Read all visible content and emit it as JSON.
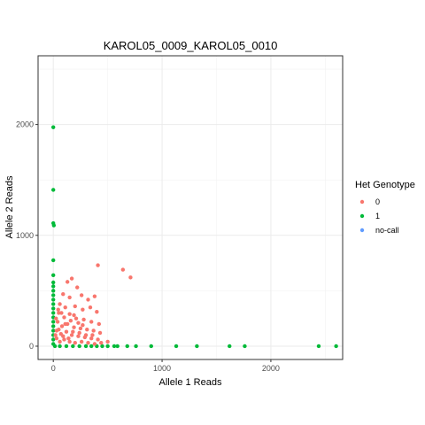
{
  "chart_data": {
    "type": "scatter",
    "title": "KAROL05_0009_KAROL05_0010",
    "xlabel": "Allele 1 Reads",
    "ylabel": "Allele 2 Reads",
    "xlim": [
      -140,
      2660
    ],
    "ylim": [
      -120,
      2620
    ],
    "xticks": [
      0,
      1000,
      2000
    ],
    "yticks": [
      0,
      1000,
      2000
    ],
    "xminor": [
      500,
      1500,
      2500
    ],
    "yminor": [
      500,
      1500,
      2500
    ],
    "grid": true,
    "legend": {
      "title": "Het Genotype",
      "position": "right",
      "entries": [
        {
          "label": "0",
          "color": "#F8766D"
        },
        {
          "label": "1",
          "color": "#00BA38"
        },
        {
          "label": "no-call",
          "color": "#619CFF"
        }
      ]
    },
    "series": [
      {
        "name": "1",
        "color": "#00BA38",
        "points": [
          [
            0,
            1975
          ],
          [
            0,
            1410
          ],
          [
            0,
            1110
          ],
          [
            5,
            1090
          ],
          [
            0,
            775
          ],
          [
            0,
            640
          ],
          [
            0,
            575
          ],
          [
            0,
            540
          ],
          [
            0,
            500
          ],
          [
            0,
            460
          ],
          [
            0,
            420
          ],
          [
            0,
            380
          ],
          [
            0,
            340
          ],
          [
            0,
            300
          ],
          [
            0,
            260
          ],
          [
            0,
            220
          ],
          [
            0,
            180
          ],
          [
            0,
            140
          ],
          [
            0,
            100
          ],
          [
            0,
            60
          ],
          [
            0,
            20
          ],
          [
            15,
            0
          ],
          [
            60,
            0
          ],
          [
            120,
            0
          ],
          [
            180,
            0
          ],
          [
            240,
            0
          ],
          [
            300,
            0
          ],
          [
            350,
            0
          ],
          [
            400,
            0
          ],
          [
            450,
            0
          ],
          [
            500,
            0
          ],
          [
            560,
            0
          ],
          [
            590,
            0
          ],
          [
            680,
            0
          ],
          [
            760,
            0
          ],
          [
            900,
            0
          ],
          [
            1130,
            0
          ],
          [
            1320,
            0
          ],
          [
            1620,
            0
          ],
          [
            1760,
            0
          ],
          [
            2440,
            0
          ],
          [
            2600,
            0
          ]
        ]
      },
      {
        "name": "0",
        "color": "#F8766D",
        "points": [
          [
            410,
            730
          ],
          [
            640,
            690
          ],
          [
            710,
            620
          ],
          [
            130,
            580
          ],
          [
            170,
            610
          ],
          [
            220,
            530
          ],
          [
            90,
            470
          ],
          [
            150,
            440
          ],
          [
            260,
            460
          ],
          [
            320,
            420
          ],
          [
            380,
            450
          ],
          [
            60,
            380
          ],
          [
            110,
            350
          ],
          [
            200,
            360
          ],
          [
            270,
            330
          ],
          [
            340,
            350
          ],
          [
            400,
            310
          ],
          [
            50,
            300
          ],
          [
            100,
            260
          ],
          [
            150,
            290
          ],
          [
            210,
            250
          ],
          [
            280,
            240
          ],
          [
            350,
            220
          ],
          [
            420,
            200
          ],
          [
            40,
            220
          ],
          [
            80,
            180
          ],
          [
            130,
            200
          ],
          [
            190,
            170
          ],
          [
            250,
            160
          ],
          [
            310,
            150
          ],
          [
            370,
            140
          ],
          [
            430,
            120
          ],
          [
            30,
            140
          ],
          [
            70,
            110
          ],
          [
            120,
            130
          ],
          [
            170,
            100
          ],
          [
            230,
            90
          ],
          [
            290,
            80
          ],
          [
            350,
            70
          ],
          [
            410,
            60
          ],
          [
            30,
            70
          ],
          [
            60,
            40
          ],
          [
            100,
            60
          ],
          [
            150,
            40
          ],
          [
            200,
            30
          ],
          [
            260,
            40
          ],
          [
            320,
            30
          ],
          [
            380,
            20
          ],
          [
            440,
            30
          ],
          [
            500,
            40
          ],
          [
            20,
            100
          ],
          [
            50,
            150
          ],
          [
            90,
            90
          ],
          [
            140,
            70
          ],
          [
            180,
            130
          ],
          [
            240,
            120
          ],
          [
            300,
            100
          ],
          [
            360,
            100
          ],
          [
            25,
            250
          ],
          [
            45,
            330
          ],
          [
            75,
            300
          ],
          [
            110,
            200
          ],
          [
            160,
            230
          ],
          [
            190,
            280
          ],
          [
            230,
            210
          ],
          [
            270,
            190
          ]
        ]
      }
    ]
  }
}
